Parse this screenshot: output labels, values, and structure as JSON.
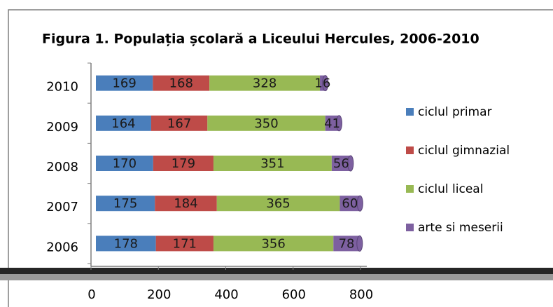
{
  "chart_data": {
    "type": "stacked_barh",
    "title": "Figura 1. Populația școlară a Liceului Hercules, 2006-2010",
    "categories": [
      "2006",
      "2007",
      "2008",
      "2009",
      "2010"
    ],
    "series": [
      {
        "name": "ciclul primar",
        "color": "#4a7ebb",
        "values": [
          178,
          175,
          170,
          164,
          169
        ]
      },
      {
        "name": "ciclul gimnazial",
        "color": "#be4b48",
        "values": [
          171,
          184,
          179,
          167,
          168
        ]
      },
      {
        "name": "ciclul liceal",
        "color": "#98b954",
        "values": [
          356,
          365,
          351,
          350,
          328
        ]
      },
      {
        "name": "arte si meserii",
        "color": "#7d60a0",
        "values": [
          78,
          60,
          56,
          41,
          16
        ]
      }
    ],
    "xlim": [
      0,
      800
    ],
    "xticks": [
      0,
      200,
      400,
      600,
      800
    ],
    "legend": "right"
  }
}
